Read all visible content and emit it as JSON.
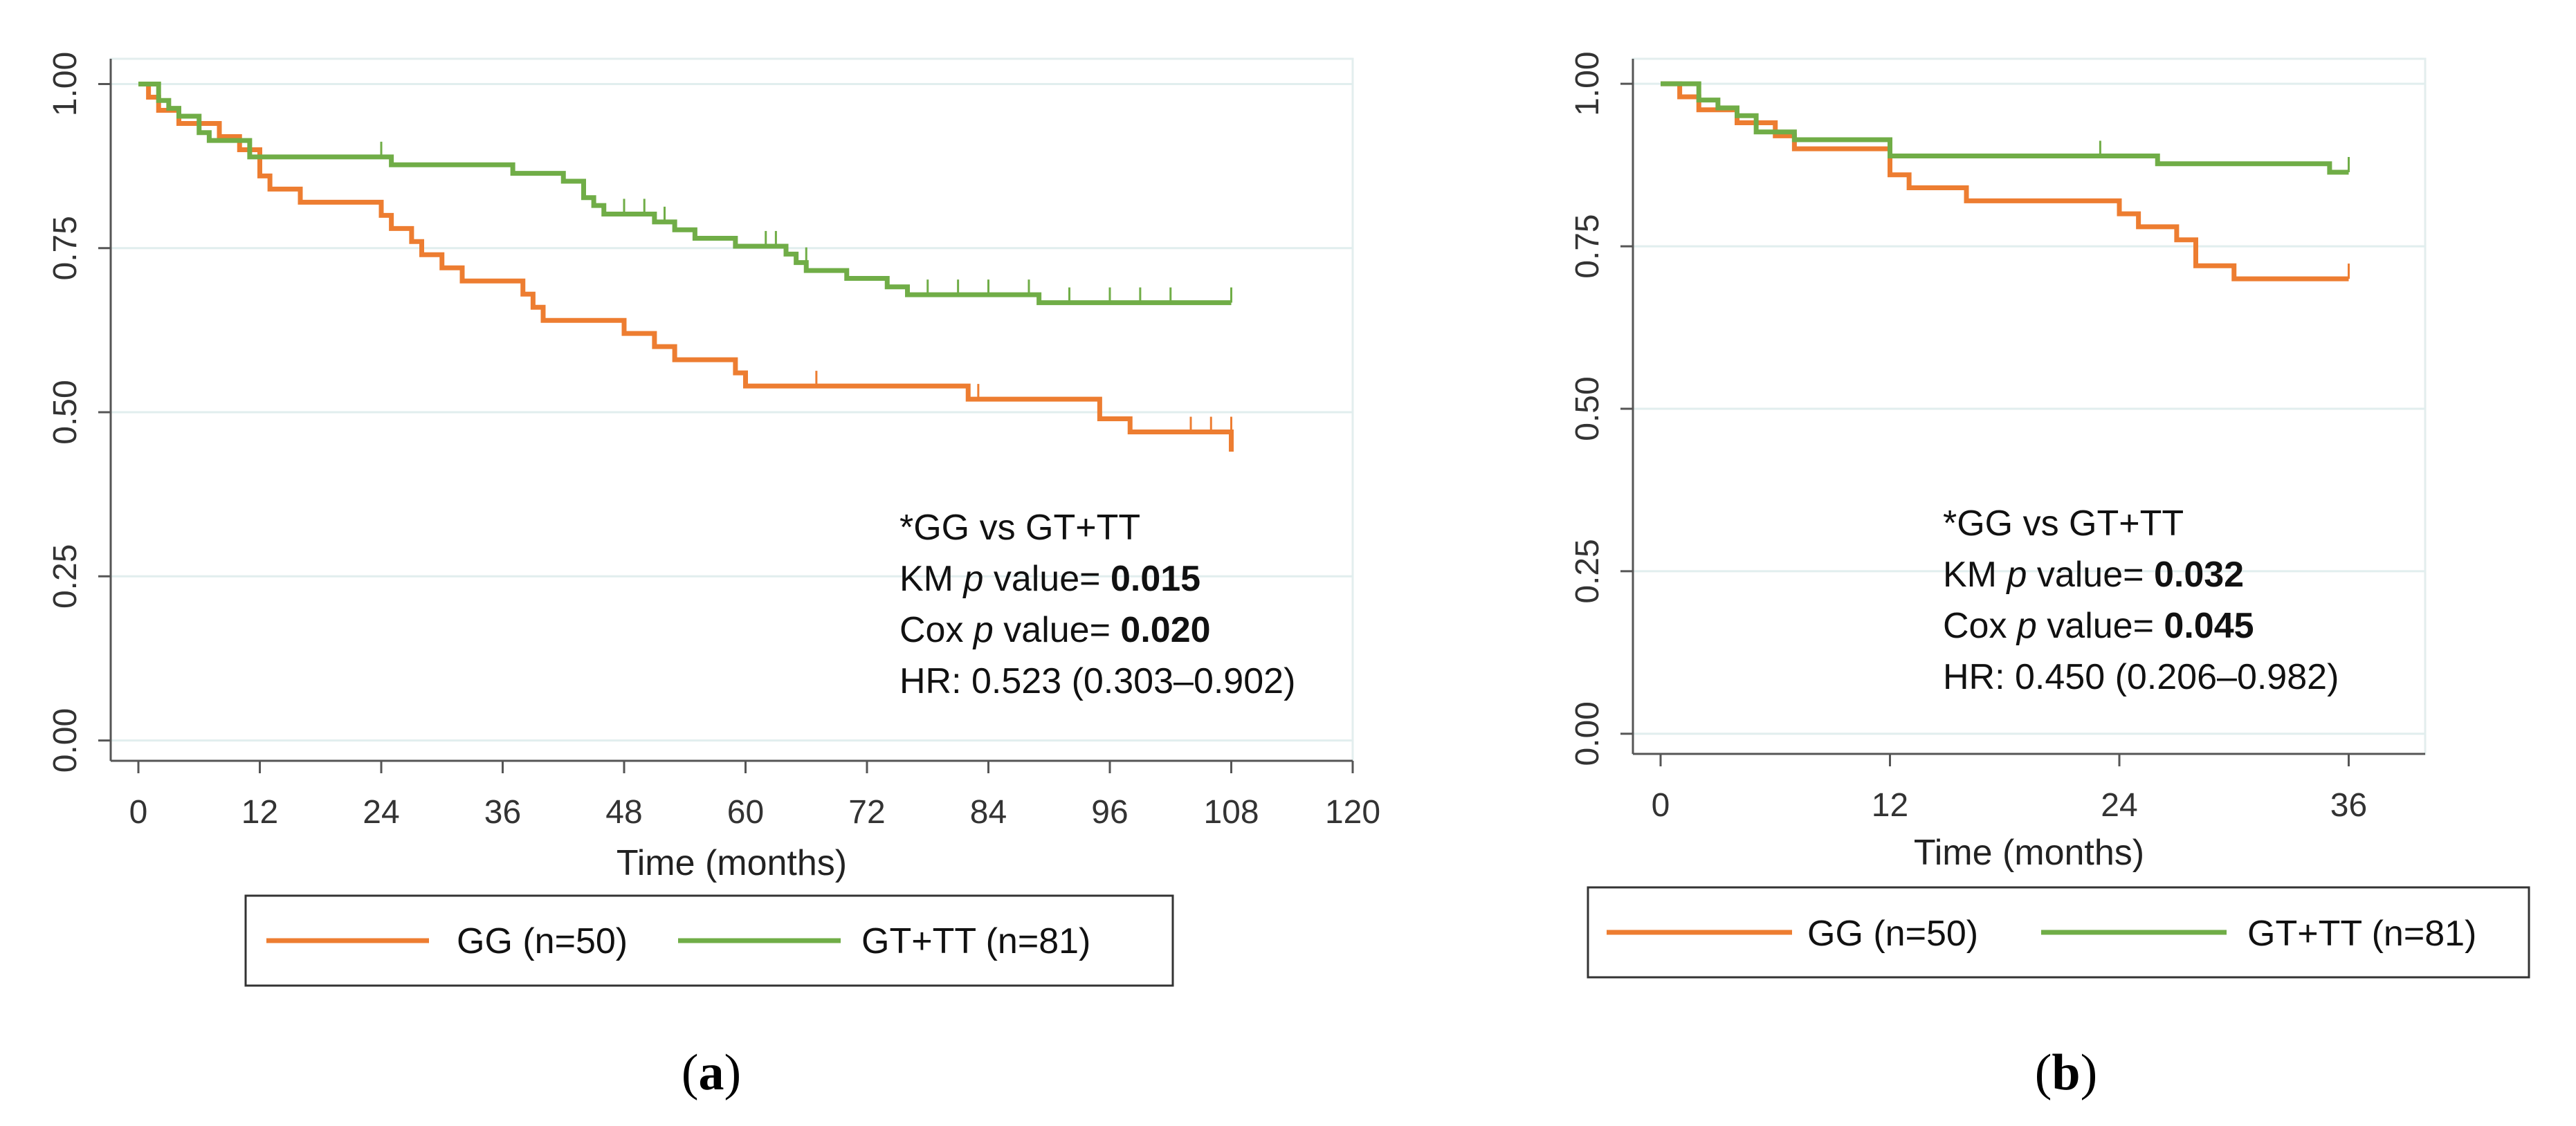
{
  "chart_data": [
    {
      "id": "a",
      "type": "line",
      "subtype": "kaplan-meier",
      "panel_label": "a",
      "xlabel": "Time (months)",
      "ylabel": "",
      "xlim": [
        0,
        120
      ],
      "ylim": [
        0,
        1
      ],
      "xticks": [
        "0",
        "12",
        "24",
        "36",
        "48",
        "60",
        "72",
        "84",
        "96",
        "108",
        "120"
      ],
      "yticks": [
        "0.00",
        "0.25",
        "0.50",
        "0.75",
        "1.00"
      ],
      "grid": "horizontal",
      "series": [
        {
          "name": "GG (n=50)",
          "color": "#ED7D31",
          "steps": [
            [
              0,
              1.0
            ],
            [
              1,
              0.98
            ],
            [
              2,
              0.96
            ],
            [
              4,
              0.94
            ],
            [
              8,
              0.92
            ],
            [
              10,
              0.9
            ],
            [
              12,
              0.86
            ],
            [
              13,
              0.84
            ],
            [
              16,
              0.82
            ],
            [
              24,
              0.8
            ],
            [
              25,
              0.78
            ],
            [
              27,
              0.76
            ],
            [
              28,
              0.74
            ],
            [
              30,
              0.72
            ],
            [
              32,
              0.7
            ],
            [
              38,
              0.68
            ],
            [
              39,
              0.66
            ],
            [
              40,
              0.64
            ],
            [
              48,
              0.62
            ],
            [
              51,
              0.6
            ],
            [
              53,
              0.58
            ],
            [
              59,
              0.56
            ],
            [
              60,
              0.54
            ],
            [
              82,
              0.52
            ],
            [
              95,
              0.49
            ],
            [
              98,
              0.47
            ],
            [
              108,
              0.44
            ]
          ],
          "end": 108,
          "censors": [
            [
              67,
              0.54
            ],
            [
              83,
              0.52
            ],
            [
              104,
              0.47
            ],
            [
              106,
              0.47
            ],
            [
              108,
              0.47
            ]
          ]
        },
        {
          "name": "GT+TT (n=81)",
          "color": "#70AD47",
          "steps": [
            [
              0,
              1.0
            ],
            [
              2,
              0.975
            ],
            [
              3,
              0.963
            ],
            [
              4,
              0.951
            ],
            [
              6,
              0.926
            ],
            [
              7,
              0.914
            ],
            [
              11,
              0.889
            ],
            [
              25,
              0.877
            ],
            [
              37,
              0.864
            ],
            [
              42,
              0.852
            ],
            [
              44,
              0.827
            ],
            [
              45,
              0.815
            ],
            [
              46,
              0.802
            ],
            [
              51,
              0.79
            ],
            [
              53,
              0.778
            ],
            [
              55,
              0.765
            ],
            [
              59,
              0.753
            ],
            [
              64,
              0.741
            ],
            [
              65,
              0.728
            ],
            [
              66,
              0.716
            ],
            [
              70,
              0.704
            ],
            [
              74,
              0.691
            ],
            [
              76,
              0.679
            ],
            [
              89,
              0.667
            ]
          ],
          "end": 108,
          "censors": [
            [
              24,
              0.889
            ],
            [
              48,
              0.802
            ],
            [
              50,
              0.802
            ],
            [
              52,
              0.79
            ],
            [
              62,
              0.753
            ],
            [
              63,
              0.753
            ],
            [
              66,
              0.728
            ],
            [
              78,
              0.679
            ],
            [
              81,
              0.679
            ],
            [
              84,
              0.679
            ],
            [
              88,
              0.679
            ],
            [
              92,
              0.667
            ],
            [
              96,
              0.667
            ],
            [
              99,
              0.667
            ],
            [
              102,
              0.667
            ],
            [
              108,
              0.667
            ]
          ]
        }
      ],
      "annotations": [
        {
          "parts": [
            {
              "text": "*GG vs GT+TT",
              "style": "normal"
            }
          ]
        },
        {
          "parts": [
            {
              "text": "KM ",
              "style": "normal"
            },
            {
              "text": "p",
              "style": "italic"
            },
            {
              "text": " value= ",
              "style": "normal"
            },
            {
              "text": "0.015",
              "style": "bold"
            }
          ]
        },
        {
          "parts": [
            {
              "text": "Cox ",
              "style": "normal"
            },
            {
              "text": "p",
              "style": "italic"
            },
            {
              "text": " value= ",
              "style": "normal"
            },
            {
              "text": "0.020",
              "style": "bold"
            }
          ]
        },
        {
          "parts": [
            {
              "text": "HR: 0.523 (0.303–0.902)",
              "style": "normal"
            }
          ]
        }
      ],
      "legend": [
        {
          "label": "GG (n=50)",
          "color": "#ED7D31"
        },
        {
          "label": "GT+TT (n=81)",
          "color": "#70AD47"
        }
      ],
      "legend_position": "bottom"
    },
    {
      "id": "b",
      "type": "line",
      "subtype": "kaplan-meier",
      "panel_label": "b",
      "xlabel": "Time (months)",
      "ylabel": "",
      "xlim": [
        0,
        40
      ],
      "ylim": [
        0,
        1
      ],
      "xticks": [
        "0",
        "12",
        "24",
        "36"
      ],
      "yticks": [
        "0.00",
        "0.25",
        "0.50",
        "0.75",
        "1.00"
      ],
      "grid": "horizontal",
      "series": [
        {
          "name": "GG (n=50)",
          "color": "#ED7D31",
          "steps": [
            [
              0,
              1.0
            ],
            [
              1,
              0.98
            ],
            [
              2,
              0.96
            ],
            [
              4,
              0.94
            ],
            [
              6,
              0.92
            ],
            [
              7,
              0.9
            ],
            [
              12,
              0.86
            ],
            [
              13,
              0.84
            ],
            [
              16,
              0.82
            ],
            [
              24,
              0.8
            ],
            [
              25,
              0.78
            ],
            [
              27,
              0.76
            ],
            [
              28,
              0.72
            ],
            [
              30,
              0.7
            ]
          ],
          "end": 36,
          "censors": [
            [
              36,
              0.7
            ]
          ]
        },
        {
          "name": "GT+TT (n=81)",
          "color": "#70AD47",
          "steps": [
            [
              0,
              1.0
            ],
            [
              2,
              0.975
            ],
            [
              3,
              0.963
            ],
            [
              4,
              0.951
            ],
            [
              5,
              0.926
            ],
            [
              7,
              0.914
            ],
            [
              12,
              0.889
            ],
            [
              26,
              0.877
            ],
            [
              35,
              0.864
            ]
          ],
          "end": 36,
          "censors": [
            [
              23,
              0.889
            ],
            [
              36,
              0.864
            ]
          ]
        }
      ],
      "annotations": [
        {
          "parts": [
            {
              "text": "*GG vs GT+TT",
              "style": "normal"
            }
          ]
        },
        {
          "parts": [
            {
              "text": "KM ",
              "style": "normal"
            },
            {
              "text": "p",
              "style": "italic"
            },
            {
              "text": " value= ",
              "style": "normal"
            },
            {
              "text": "0.032",
              "style": "bold"
            }
          ]
        },
        {
          "parts": [
            {
              "text": "Cox ",
              "style": "normal"
            },
            {
              "text": "p",
              "style": "italic"
            },
            {
              "text": " value= ",
              "style": "normal"
            },
            {
              "text": "0.045",
              "style": "bold"
            }
          ]
        },
        {
          "parts": [
            {
              "text": "HR: 0.450 (0.206–0.982)",
              "style": "normal"
            }
          ]
        }
      ],
      "legend": [
        {
          "label": "GG (n=50)",
          "color": "#ED7D31"
        },
        {
          "label": "GT+TT (n=81)",
          "color": "#70AD47"
        }
      ],
      "legend_position": "bottom"
    }
  ]
}
